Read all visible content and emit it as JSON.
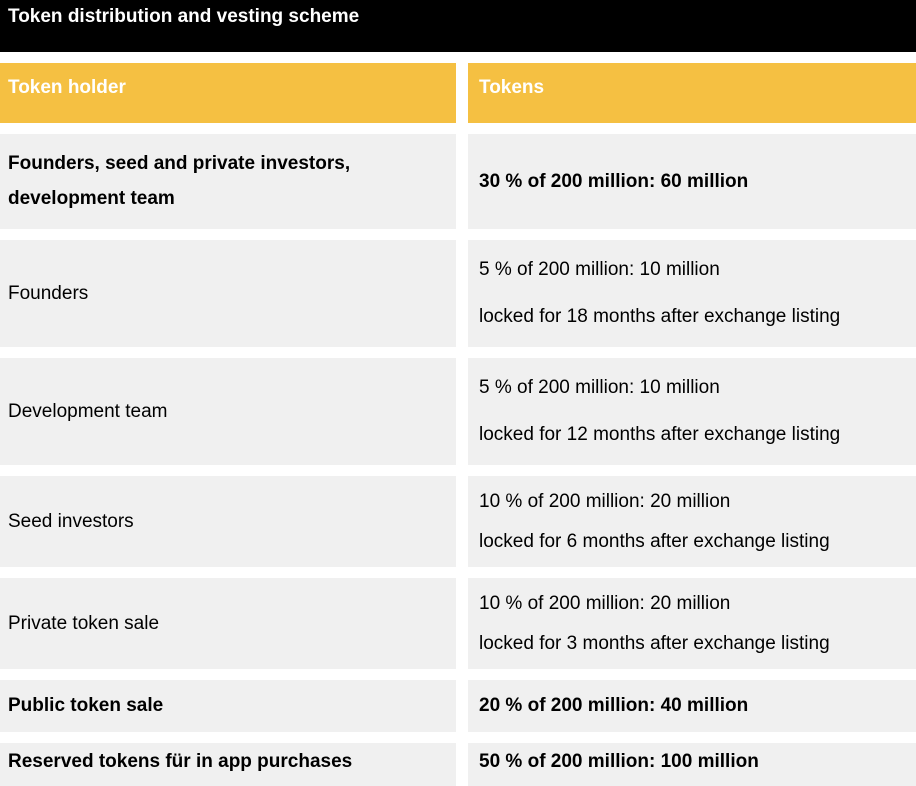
{
  "title": "Token distribution and vesting scheme",
  "header": {
    "holder_label": "Token holder",
    "tokens_label": "Tokens"
  },
  "rows": [
    {
      "holder_lines": [
        "Founders, seed and private investors,",
        "development team"
      ],
      "tokens_lines": [
        "30 % of 200 million: 60 million"
      ],
      "bold": true
    },
    {
      "holder_lines": [
        "Founders"
      ],
      "tokens_lines": [
        "5 % of 200 million: 10 million",
        "locked for 18 months after exchange listing"
      ],
      "bold": false
    },
    {
      "holder_lines": [
        "Development team"
      ],
      "tokens_lines": [
        "5 % of 200 million: 10 million",
        "locked for 12 months after exchange listing"
      ],
      "bold": false
    },
    {
      "holder_lines": [
        "Seed investors"
      ],
      "tokens_lines": [
        "10 % of 200 million: 20 million",
        "locked for 6 months after exchange listing"
      ],
      "bold": false
    },
    {
      "holder_lines": [
        "Private token sale"
      ],
      "tokens_lines": [
        "10 % of 200 million: 20 million",
        "locked for 3 months after exchange listing"
      ],
      "bold": false
    },
    {
      "holder_lines": [
        "Public token sale"
      ],
      "tokens_lines": [
        "20 % of 200 million: 40 million"
      ],
      "bold": true
    },
    {
      "holder_lines": [
        "Reserved tokens für in app purchases"
      ],
      "tokens_lines": [
        "50 % of 200 million: 100 million"
      ],
      "bold": true
    }
  ],
  "colors": {
    "title_background": "#000000",
    "header_background": "#f5c042",
    "row_background": "#f0f0f0"
  }
}
